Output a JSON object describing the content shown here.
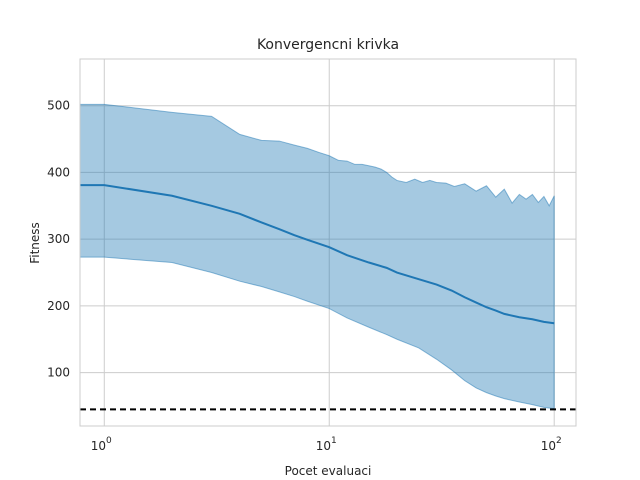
{
  "chart_data": {
    "type": "line",
    "title": "Konvergencni krivka",
    "xlabel": "Pocet evaluaci",
    "ylabel": "Fitness",
    "xscale": "log",
    "xlim": [
      0.78,
      125
    ],
    "ylim": [
      20,
      570
    ],
    "x_ticks": [
      1,
      10,
      100
    ],
    "x_tick_labels": [
      "10^0",
      "10^1",
      "10^2"
    ],
    "y_ticks": [
      100,
      200,
      300,
      400,
      500
    ],
    "y_tick_labels": [
      "100",
      "200",
      "300",
      "400",
      "500"
    ],
    "grid": true,
    "legend": "none",
    "colors": {
      "mean": "#1f77b4",
      "band": "#1f77b4",
      "reference": "#000000",
      "grid": "#cccccc"
    },
    "series": [
      {
        "role": "mean",
        "style": "solid",
        "x": [
          0.78,
          1,
          2,
          3,
          4,
          5,
          6,
          7,
          8,
          10,
          12,
          15,
          18,
          20,
          25,
          30,
          35,
          40,
          45,
          50,
          55,
          60,
          70,
          80,
          90,
          100
        ],
        "values": [
          381,
          381,
          365,
          350,
          338,
          325,
          315,
          306,
          299,
          288,
          276,
          265,
          257,
          250,
          240,
          232,
          223,
          213,
          205,
          198,
          193,
          188,
          183,
          180,
          176,
          174
        ]
      },
      {
        "role": "upper",
        "style": "band",
        "x": [
          0.78,
          1,
          2,
          3,
          4,
          5,
          6,
          7,
          8,
          9,
          10,
          11,
          12,
          13,
          14,
          15,
          16,
          17,
          18,
          19,
          20,
          22,
          24,
          26,
          28,
          30,
          33,
          36,
          40,
          45,
          50,
          55,
          60,
          65,
          70,
          75,
          80,
          85,
          90,
          95,
          100
        ],
        "values": [
          502,
          502,
          490,
          484,
          457,
          448,
          447,
          441,
          436,
          430,
          425,
          418,
          417,
          412,
          412,
          410,
          408,
          405,
          400,
          393,
          388,
          385,
          390,
          385,
          388,
          385,
          384,
          379,
          383,
          372,
          380,
          363,
          375,
          354,
          367,
          360,
          367,
          355,
          364,
          350,
          365
        ]
      },
      {
        "role": "lower",
        "style": "band",
        "x": [
          0.78,
          1,
          2,
          3,
          4,
          5,
          6,
          7,
          8,
          10,
          12,
          15,
          18,
          20,
          25,
          30,
          35,
          40,
          45,
          50,
          55,
          60,
          70,
          80,
          90,
          100
        ],
        "values": [
          273,
          273,
          265,
          250,
          237,
          229,
          221,
          214,
          207,
          196,
          182,
          168,
          157,
          150,
          137,
          120,
          104,
          88,
          77,
          70,
          65,
          61,
          56,
          52,
          48,
          46
        ]
      },
      {
        "role": "reference",
        "style": "dashed",
        "x": [
          0.78,
          125
        ],
        "values": [
          45,
          45
        ]
      }
    ]
  }
}
